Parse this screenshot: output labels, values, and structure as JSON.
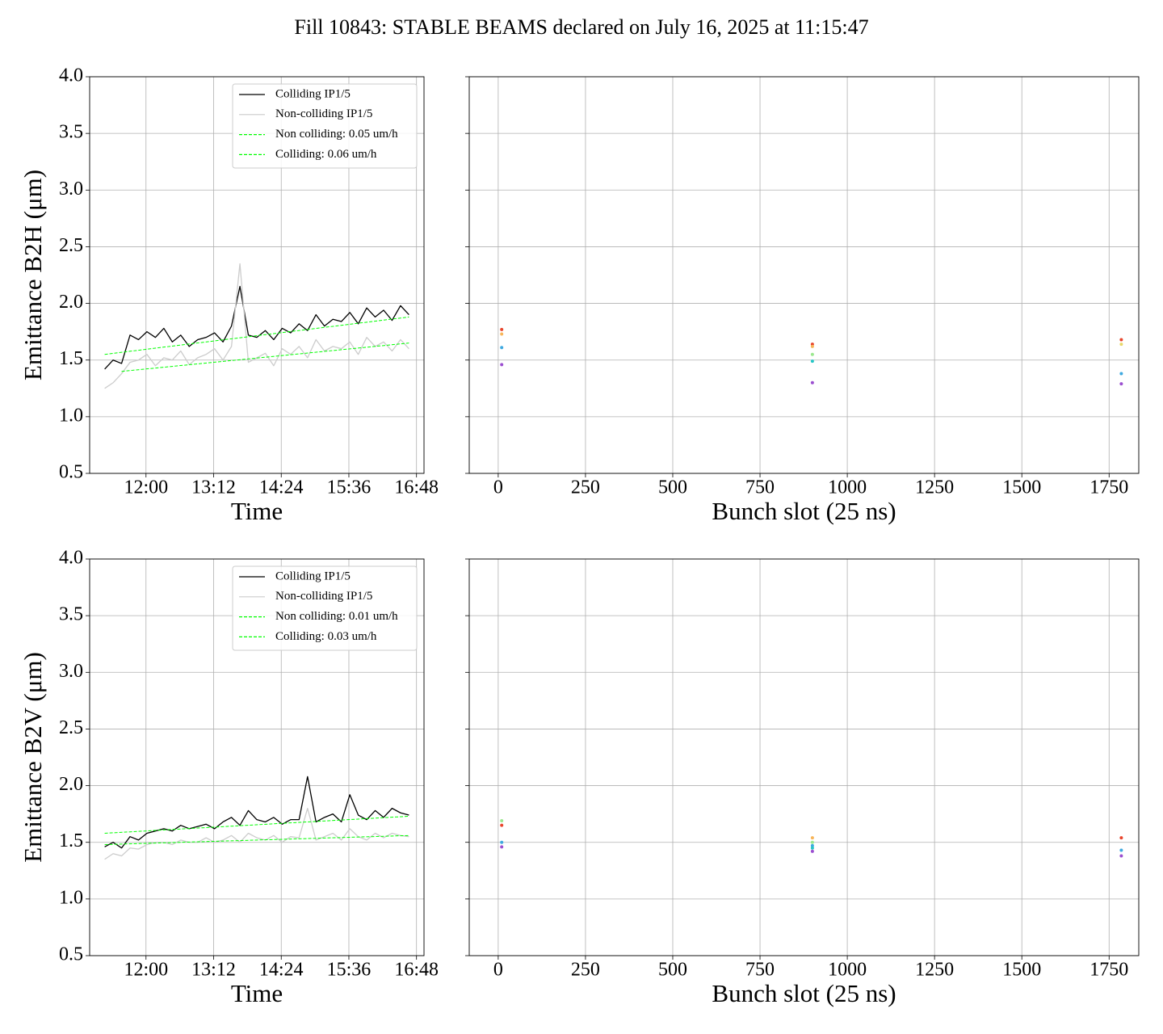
{
  "title": "Fill 10843: STABLE BEAMS declared on July 16, 2025 at 11:15:47",
  "chart_data": [
    {
      "type": "line",
      "xlabel": "Time",
      "ylabel": "Emittance B2H (μm)",
      "xlim": [
        "11:00",
        "16:56"
      ],
      "xticks": [
        "12:00",
        "13:12",
        "14:24",
        "15:36",
        "16:48"
      ],
      "ylim": [
        0.5,
        4.0
      ],
      "yticks": [
        0.5,
        {
          "value": 1.0,
          "label": "1.0"
        },
        1.5,
        {
          "value": 2.0,
          "label": "2.0"
        },
        2.5,
        {
          "value": 3.0,
          "label": "3.0"
        },
        3.5,
        {
          "value": 4.0,
          "label": "4.0"
        }
      ],
      "grid": true,
      "legend": "upper right",
      "x": [
        "11:16",
        "11:25",
        "11:34",
        "11:43",
        "11:52",
        "12:01",
        "12:10",
        "12:19",
        "12:28",
        "12:37",
        "12:46",
        "12:55",
        "13:04",
        "13:13",
        "13:22",
        "13:31",
        "13:40",
        "13:49",
        "13:58",
        "14:07",
        "14:16",
        "14:25",
        "14:34",
        "14:43",
        "14:52",
        "15:01",
        "15:10",
        "15:19",
        "15:28",
        "15:37",
        "15:46",
        "15:55",
        "16:04",
        "16:13",
        "16:22",
        "16:31",
        "16:40"
      ],
      "series": [
        {
          "name": "Colliding IP1/5",
          "color": "#000000",
          "style": "solid",
          "values": [
            1.42,
            1.5,
            1.47,
            1.72,
            1.68,
            1.75,
            1.7,
            1.78,
            1.66,
            1.72,
            1.62,
            1.68,
            1.7,
            1.74,
            1.66,
            1.8,
            2.15,
            1.72,
            1.7,
            1.76,
            1.68,
            1.78,
            1.74,
            1.82,
            1.76,
            1.9,
            1.8,
            1.86,
            1.84,
            1.92,
            1.82,
            1.96,
            1.88,
            1.94,
            1.85,
            1.98,
            1.9
          ]
        },
        {
          "name": "Non-colliding IP1/5",
          "color": "#cccccc",
          "style": "solid",
          "values": [
            1.25,
            1.3,
            1.38,
            1.48,
            1.5,
            1.55,
            1.45,
            1.52,
            1.5,
            1.58,
            1.46,
            1.52,
            1.55,
            1.6,
            1.5,
            1.62,
            2.35,
            1.48,
            1.52,
            1.56,
            1.45,
            1.6,
            1.55,
            1.62,
            1.52,
            1.68,
            1.58,
            1.62,
            1.6,
            1.66,
            1.55,
            1.7,
            1.62,
            1.66,
            1.58,
            1.68,
            1.6
          ]
        },
        {
          "name": "Non colliding: 0.05 um/h",
          "color": "#00ff00",
          "style": "dashed",
          "x": [
            "11:34",
            "16:40"
          ],
          "values": [
            1.4,
            1.65
          ]
        },
        {
          "name": "Colliding: 0.06 um/h",
          "color": "#00ff00",
          "style": "dashed",
          "x": [
            "11:16",
            "16:40"
          ],
          "values": [
            1.55,
            1.88
          ]
        }
      ]
    },
    {
      "type": "scatter",
      "xlabel": "Bunch slot (25 ns)",
      "xlim": [
        -83,
        1835
      ],
      "xticks": [
        0,
        250,
        500,
        750,
        1000,
        1250,
        1500,
        1750
      ],
      "ylim": [
        0.5,
        4.0
      ],
      "yticks": [
        0.5,
        {
          "value": 1.0,
          "label": "1.0"
        },
        1.5,
        {
          "value": 2.0,
          "label": "2.0"
        },
        2.5,
        {
          "value": 3.0,
          "label": "3.0"
        },
        3.5,
        {
          "value": 4.0,
          "label": "4.0"
        }
      ],
      "ytick_labels": false,
      "grid": true,
      "x": [
        10,
        10,
        10,
        10,
        900,
        900,
        900,
        900,
        900,
        1785,
        1785,
        1785,
        1785
      ],
      "values": [
        1.77,
        1.73,
        1.61,
        1.46,
        1.64,
        1.62,
        1.55,
        1.49,
        1.3,
        1.68,
        1.64,
        1.38,
        1.29
      ],
      "colors": [
        "#e8452c",
        "#f7b55a",
        "#3fa9e0",
        "#9b4fd0",
        "#e8452c",
        "#f7b55a",
        "#9be88f",
        "#26c6c6",
        "#9b4fd0",
        "#e8452c",
        "#e8d86a",
        "#3fa9e0",
        "#9b4fd0"
      ]
    },
    {
      "type": "line",
      "xlabel": "Time",
      "ylabel": "Emittance B2V (μm)",
      "xlim": [
        "11:00",
        "16:56"
      ],
      "xticks": [
        "12:00",
        "13:12",
        "14:24",
        "15:36",
        "16:48"
      ],
      "ylim": [
        0.5,
        4.0
      ],
      "yticks": [
        0.5,
        {
          "value": 1.0,
          "label": "1.0"
        },
        1.5,
        {
          "value": 2.0,
          "label": "2.0"
        },
        2.5,
        {
          "value": 3.0,
          "label": "3.0"
        },
        3.5,
        {
          "value": 4.0,
          "label": "4.0"
        }
      ],
      "grid": true,
      "legend": "upper right",
      "x": [
        "11:16",
        "11:25",
        "11:34",
        "11:43",
        "11:52",
        "12:01",
        "12:10",
        "12:19",
        "12:28",
        "12:37",
        "12:46",
        "12:55",
        "13:04",
        "13:13",
        "13:22",
        "13:31",
        "13:40",
        "13:49",
        "13:58",
        "14:07",
        "14:16",
        "14:25",
        "14:34",
        "14:43",
        "14:52",
        "15:01",
        "15:10",
        "15:19",
        "15:28",
        "15:37",
        "15:46",
        "15:55",
        "16:04",
        "16:13",
        "16:22",
        "16:31",
        "16:40"
      ],
      "series": [
        {
          "name": "Colliding IP1/5",
          "color": "#000000",
          "style": "solid",
          "values": [
            1.46,
            1.5,
            1.45,
            1.55,
            1.52,
            1.58,
            1.6,
            1.62,
            1.6,
            1.65,
            1.62,
            1.64,
            1.66,
            1.62,
            1.68,
            1.72,
            1.65,
            1.78,
            1.7,
            1.68,
            1.72,
            1.66,
            1.7,
            1.7,
            2.08,
            1.68,
            1.72,
            1.75,
            1.68,
            1.92,
            1.74,
            1.7,
            1.78,
            1.72,
            1.8,
            1.76,
            1.74
          ]
        },
        {
          "name": "Non-colliding IP1/5",
          "color": "#cccccc",
          "style": "solid",
          "values": [
            1.35,
            1.4,
            1.38,
            1.45,
            1.44,
            1.48,
            1.5,
            1.5,
            1.48,
            1.52,
            1.5,
            1.5,
            1.54,
            1.5,
            1.52,
            1.56,
            1.5,
            1.58,
            1.54,
            1.52,
            1.56,
            1.5,
            1.55,
            1.54,
            1.8,
            1.52,
            1.55,
            1.58,
            1.52,
            1.62,
            1.55,
            1.52,
            1.58,
            1.54,
            1.58,
            1.56,
            1.55
          ]
        },
        {
          "name": "Non colliding: 0.01 um/h",
          "color": "#00ff00",
          "style": "dashed",
          "x": [
            "11:16",
            "16:40"
          ],
          "values": [
            1.48,
            1.56
          ]
        },
        {
          "name": "Colliding: 0.03 um/h",
          "color": "#00ff00",
          "style": "dashed",
          "x": [
            "11:16",
            "16:40"
          ],
          "values": [
            1.58,
            1.73
          ]
        }
      ]
    },
    {
      "type": "scatter",
      "xlabel": "Bunch slot (25 ns)",
      "xlim": [
        -83,
        1835
      ],
      "xticks": [
        0,
        250,
        500,
        750,
        1000,
        1250,
        1500,
        1750
      ],
      "ylim": [
        0.5,
        4.0
      ],
      "yticks": [
        0.5,
        {
          "value": 1.0,
          "label": "1.0"
        },
        1.5,
        {
          "value": 2.0,
          "label": "2.0"
        },
        2.5,
        {
          "value": 3.0,
          "label": "3.0"
        },
        3.5,
        {
          "value": 4.0,
          "label": "4.0"
        }
      ],
      "ytick_labels": false,
      "grid": true,
      "x": [
        10,
        10,
        10,
        10,
        900,
        900,
        900,
        900,
        900,
        1785,
        1785,
        1785
      ],
      "values": [
        1.69,
        1.65,
        1.5,
        1.46,
        1.54,
        1.5,
        1.47,
        1.45,
        1.42,
        1.54,
        1.43,
        1.38
      ],
      "colors": [
        "#9be88f",
        "#e8452c",
        "#3fa9e0",
        "#9b4fd0",
        "#f7b55a",
        "#9be88f",
        "#3fa9e0",
        "#26c6c6",
        "#9b4fd0",
        "#e8452c",
        "#3fa9e0",
        "#9b4fd0"
      ]
    }
  ]
}
